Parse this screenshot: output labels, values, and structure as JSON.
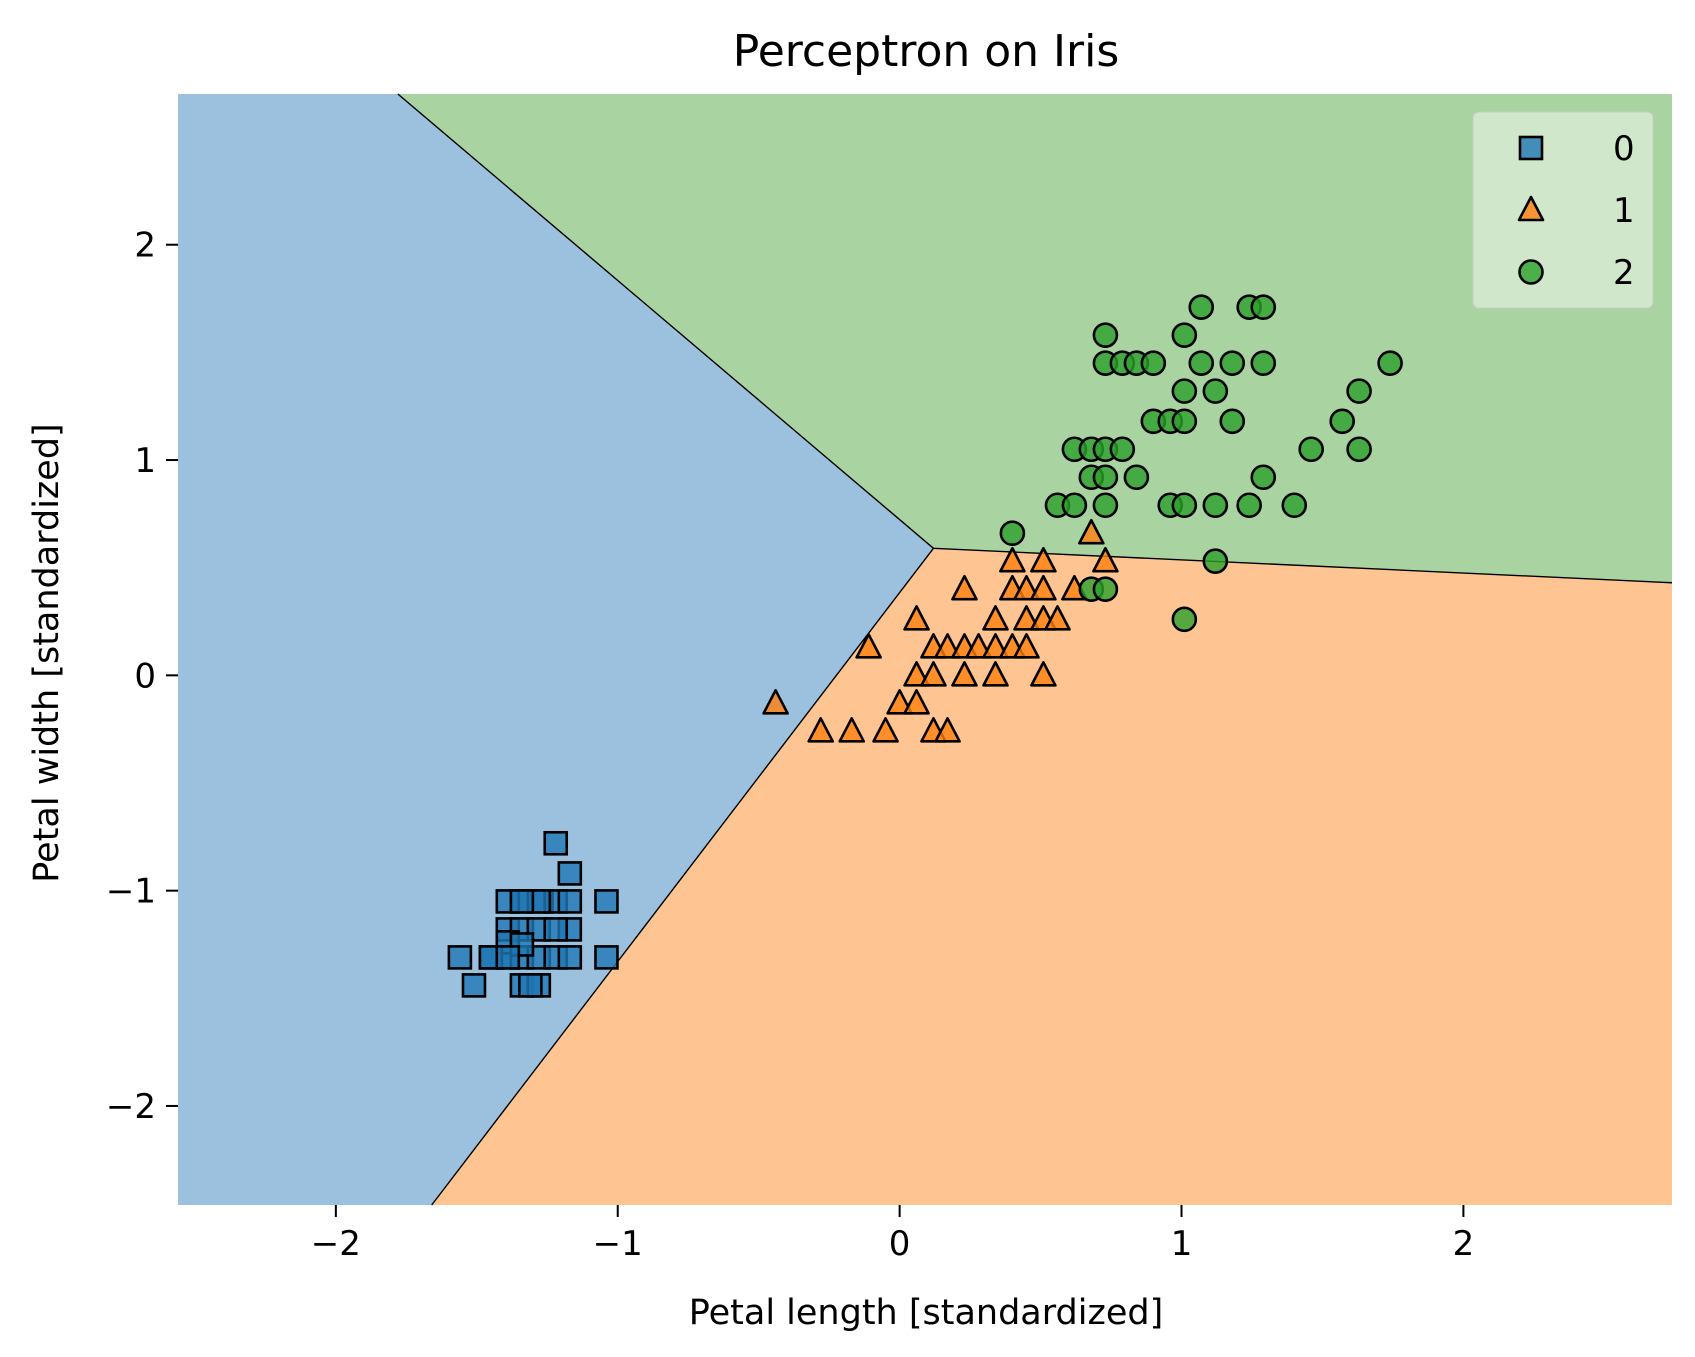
{
  "chart_data": {
    "type": "scatter",
    "title": "Perceptron on Iris",
    "xlabel": "Petal length [standardized]",
    "ylabel": "Petal width [standardized]",
    "xlim": [
      -2.56,
      2.74
    ],
    "ylim": [
      -2.46,
      2.7
    ],
    "xticks": [
      -2,
      -1,
      0,
      1,
      2
    ],
    "xtick_labels": [
      "−2",
      "−1",
      "0",
      "1",
      "2"
    ],
    "yticks": [
      -2,
      -1,
      0,
      1,
      2
    ],
    "ytick_labels": [
      "−2",
      "−1",
      "0",
      "1",
      "2"
    ],
    "grid": false,
    "legend_position": "top-right",
    "decision_regions": [
      {
        "class": "0",
        "color": "#9cc1de",
        "polygon": [
          [
            -2.56,
            2.7
          ],
          [
            -1.78,
            2.7
          ],
          [
            0.12,
            0.59
          ],
          [
            -1.66,
            -2.46
          ],
          [
            -2.56,
            -2.46
          ]
        ]
      },
      {
        "class": "2",
        "color": "#a9d3a0",
        "polygon": [
          [
            -1.78,
            2.7
          ],
          [
            2.74,
            2.7
          ],
          [
            2.74,
            0.43
          ],
          [
            0.12,
            0.59
          ]
        ]
      },
      {
        "class": "1",
        "color": "#fec492",
        "polygon": [
          [
            0.12,
            0.59
          ],
          [
            2.74,
            0.43
          ],
          [
            2.74,
            -2.46
          ],
          [
            -1.66,
            -2.46
          ]
        ]
      }
    ],
    "boundaries": [
      [
        [
          -1.78,
          2.7
        ],
        [
          0.12,
          0.59
        ]
      ],
      [
        [
          0.12,
          0.59
        ],
        [
          -1.66,
          -2.46
        ]
      ],
      [
        [
          0.12,
          0.59
        ],
        [
          2.74,
          0.43
        ]
      ]
    ],
    "series": [
      {
        "name": "0",
        "marker": "square",
        "color": "#1f77b4",
        "points": [
          [
            -1.22,
            -0.78
          ],
          [
            -1.17,
            -0.92
          ],
          [
            -1.34,
            -1.05
          ],
          [
            -1.27,
            -1.05
          ],
          [
            -1.22,
            -1.05
          ],
          [
            -1.04,
            -1.05
          ],
          [
            -1.17,
            -1.05
          ],
          [
            -1.39,
            -1.05
          ],
          [
            -1.39,
            -1.18
          ],
          [
            -1.34,
            -1.18
          ],
          [
            -1.28,
            -1.18
          ],
          [
            -1.17,
            -1.18
          ],
          [
            -1.56,
            -1.31
          ],
          [
            -1.45,
            -1.31
          ],
          [
            -1.39,
            -1.31
          ],
          [
            -1.34,
            -1.31
          ],
          [
            -1.28,
            -1.31
          ],
          [
            -1.22,
            -1.31
          ],
          [
            -1.17,
            -1.31
          ],
          [
            -1.04,
            -1.31
          ],
          [
            -1.51,
            -1.44
          ],
          [
            -1.34,
            -1.44
          ],
          [
            -1.28,
            -1.44
          ],
          [
            -1.39,
            -1.24
          ],
          [
            -1.34,
            -1.25
          ],
          [
            -1.22,
            -1.18
          ],
          [
            -1.45,
            -1.31
          ],
          [
            -1.31,
            -1.44
          ],
          [
            -1.28,
            -1.05
          ],
          [
            -1.39,
            -1.31
          ],
          [
            -1.34,
            -1.05
          ]
        ]
      },
      {
        "name": "1",
        "marker": "triangle",
        "color": "#ff7f0e",
        "points": [
          [
            -0.44,
            -0.13
          ],
          [
            -0.28,
            -0.26
          ],
          [
            -0.17,
            -0.26
          ],
          [
            -0.05,
            -0.26
          ],
          [
            0.12,
            -0.26
          ],
          [
            0.17,
            -0.26
          ],
          [
            0.0,
            -0.13
          ],
          [
            0.06,
            -0.13
          ],
          [
            -0.11,
            0.13
          ],
          [
            0.12,
            0.13
          ],
          [
            0.17,
            0.13
          ],
          [
            0.23,
            0.13
          ],
          [
            0.28,
            0.13
          ],
          [
            0.34,
            0.13
          ],
          [
            0.4,
            0.13
          ],
          [
            0.45,
            0.13
          ],
          [
            0.06,
            0.0
          ],
          [
            0.12,
            0.0
          ],
          [
            0.23,
            0.0
          ],
          [
            0.34,
            0.0
          ],
          [
            0.51,
            0.0
          ],
          [
            0.06,
            0.26
          ],
          [
            0.34,
            0.26
          ],
          [
            0.45,
            0.26
          ],
          [
            0.51,
            0.26
          ],
          [
            0.56,
            0.26
          ],
          [
            0.23,
            0.4
          ],
          [
            0.4,
            0.4
          ],
          [
            0.45,
            0.4
          ],
          [
            0.51,
            0.4
          ],
          [
            0.62,
            0.4
          ],
          [
            0.4,
            0.53
          ],
          [
            0.51,
            0.53
          ],
          [
            0.73,
            0.53
          ],
          [
            0.68,
            0.66
          ]
        ]
      },
      {
        "name": "2",
        "marker": "circle",
        "color": "#2ca02c",
        "points": [
          [
            0.73,
            1.58
          ],
          [
            1.01,
            1.58
          ],
          [
            1.07,
            1.71
          ],
          [
            1.24,
            1.71
          ],
          [
            1.29,
            1.71
          ],
          [
            0.73,
            1.45
          ],
          [
            0.79,
            1.45
          ],
          [
            0.84,
            1.45
          ],
          [
            0.9,
            1.45
          ],
          [
            1.07,
            1.45
          ],
          [
            1.18,
            1.45
          ],
          [
            1.29,
            1.45
          ],
          [
            1.74,
            1.45
          ],
          [
            1.01,
            1.32
          ],
          [
            1.12,
            1.32
          ],
          [
            1.63,
            1.32
          ],
          [
            0.9,
            1.18
          ],
          [
            0.96,
            1.18
          ],
          [
            1.01,
            1.18
          ],
          [
            1.18,
            1.18
          ],
          [
            1.57,
            1.18
          ],
          [
            0.62,
            1.05
          ],
          [
            0.68,
            1.05
          ],
          [
            0.73,
            1.05
          ],
          [
            0.79,
            1.05
          ],
          [
            1.46,
            1.05
          ],
          [
            1.63,
            1.05
          ],
          [
            0.68,
            0.92
          ],
          [
            0.73,
            0.92
          ],
          [
            0.84,
            0.92
          ],
          [
            1.29,
            0.92
          ],
          [
            0.56,
            0.79
          ],
          [
            0.62,
            0.79
          ],
          [
            0.73,
            0.79
          ],
          [
            0.96,
            0.79
          ],
          [
            1.01,
            0.79
          ],
          [
            1.12,
            0.79
          ],
          [
            1.24,
            0.79
          ],
          [
            1.4,
            0.79
          ],
          [
            0.4,
            0.66
          ],
          [
            1.12,
            0.53
          ],
          [
            0.68,
            0.4
          ],
          [
            0.73,
            0.4
          ],
          [
            1.01,
            0.26
          ]
        ]
      }
    ]
  }
}
